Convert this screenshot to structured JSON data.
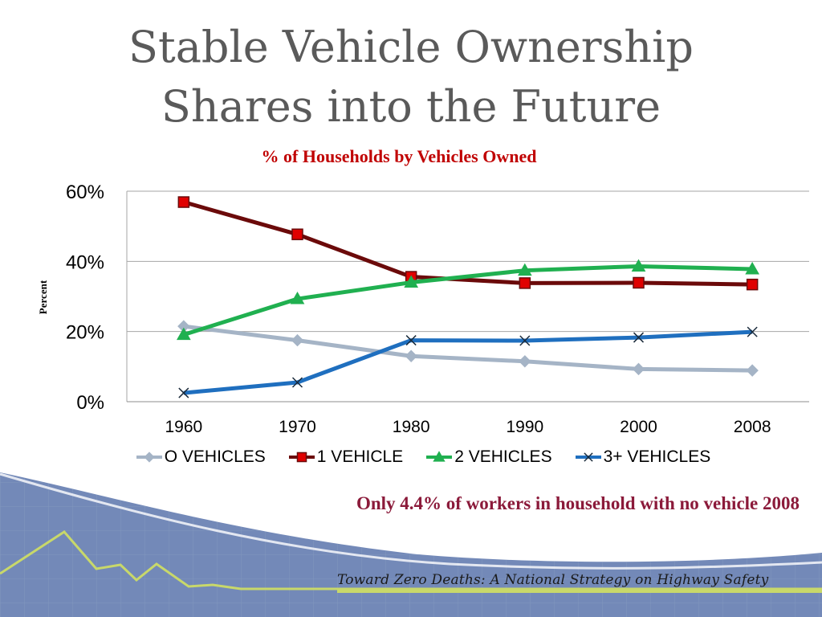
{
  "slide": {
    "title_line1": "Stable Vehicle Ownership",
    "title_line2": "Shares into the Future",
    "note": "Only 4.4% of workers in household with no vehicle 2008",
    "footer": "Toward Zero Deaths: A National Strategy on Highway Safety"
  },
  "chart_data": {
    "type": "line",
    "title": "% of Households by Vehicles Owned",
    "ylabel": "Percent",
    "xlabel": "",
    "x": [
      "1960",
      "1970",
      "1980",
      "1990",
      "2000",
      "2008"
    ],
    "ylim": [
      0,
      60
    ],
    "yticks": [
      "0%",
      "20%",
      "40%",
      "60%"
    ],
    "ytick_values": [
      0,
      20,
      40,
      60
    ],
    "grid": true,
    "legend": "bottom",
    "series": [
      {
        "name": "O VEHICLES",
        "values": [
          21.5,
          17.5,
          13.0,
          11.5,
          9.3,
          8.9
        ],
        "color": "#a5b4c6",
        "marker": "diamond"
      },
      {
        "name": "1 VEHICLE",
        "values": [
          56.9,
          47.7,
          35.6,
          33.8,
          33.9,
          33.4
        ],
        "color": "#6b0a0a",
        "marker": "square",
        "marker_fill": "#e00000"
      },
      {
        "name": "2 VEHICLES",
        "values": [
          19.1,
          29.3,
          34.0,
          37.4,
          38.6,
          37.8
        ],
        "color": "#20b050",
        "marker": "triangle"
      },
      {
        "name": "3+ VEHICLES",
        "values": [
          2.5,
          5.5,
          17.5,
          17.4,
          18.3,
          19.9
        ],
        "color": "#1f6fbf",
        "marker": "x"
      }
    ]
  }
}
